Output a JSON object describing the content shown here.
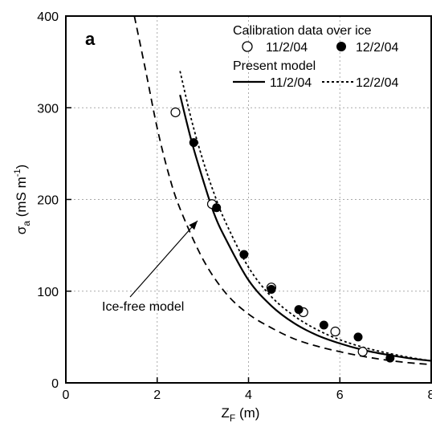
{
  "chart_data": {
    "type": "scatter",
    "panel_label": "a",
    "xlim": [
      0,
      8
    ],
    "ylim": [
      0,
      400
    ],
    "x_ticks": [
      0,
      2,
      4,
      6,
      8
    ],
    "y_ticks": [
      0,
      100,
      200,
      300,
      400
    ],
    "x_tick_labels": [
      "0",
      "2",
      "4",
      "6",
      "8"
    ],
    "y_tick_labels": [
      "0",
      "100",
      "200",
      "300",
      "400"
    ],
    "xlabel": {
      "main": "Z",
      "sub": "F",
      "rest": " (m)"
    },
    "ylabel": {
      "main": "σ",
      "sub": "a",
      "rest": " (mS m",
      "sup": "-1",
      "end": ")"
    },
    "grid": "dotted",
    "legend": {
      "position": "top-right",
      "title1": "Calibration data over ice",
      "item_open": "11/2/04",
      "item_filled": "12/2/04",
      "title2": "Present model",
      "item_solid": "11/2/04",
      "item_dotted": "12/2/04"
    },
    "annotation": {
      "text": "Ice-free model"
    },
    "points": [
      {
        "date": "11/2/04",
        "marker": "open",
        "x": [
          2.4,
          3.2,
          4.5,
          5.2,
          5.9,
          6.5
        ],
        "y": [
          295,
          195,
          104,
          77,
          56,
          34
        ]
      },
      {
        "date": "12/2/04",
        "marker": "filled",
        "x": [
          2.8,
          3.3,
          3.9,
          4.5,
          5.1,
          5.65,
          6.4,
          7.1
        ],
        "y": [
          262,
          191,
          140,
          102,
          80,
          63,
          50,
          27
        ]
      }
    ],
    "curves": [
      {
        "model": "Present model",
        "date": "11/2/04",
        "style": "solid",
        "x": [
          2.5,
          2.75,
          3.0,
          3.25,
          3.5,
          4.0,
          4.5,
          5.0,
          5.5,
          6.0,
          6.5,
          7.0,
          7.5,
          8.0
        ],
        "y": [
          314,
          264,
          222,
          184,
          157,
          112,
          84,
          65,
          52,
          43,
          36,
          31,
          27,
          24
        ]
      },
      {
        "model": "Present model",
        "date": "12/2/04",
        "style": "dotted",
        "x": [
          2.5,
          2.75,
          3.0,
          3.25,
          3.5,
          4.0,
          4.5,
          5.0,
          5.5,
          6.0,
          6.5,
          7.0,
          7.5,
          8.0
        ],
        "y": [
          340,
          287,
          243,
          206,
          175,
          126,
          94,
          73,
          58,
          47,
          39,
          33,
          28,
          24
        ]
      },
      {
        "model": "Ice-free model",
        "style": "dashed",
        "x": [
          1.5,
          1.75,
          2.0,
          2.25,
          2.5,
          3.0,
          3.5,
          4.0,
          4.5,
          5.0,
          5.5,
          6.0,
          6.5,
          7.0,
          7.5,
          8.0
        ],
        "y": [
          400,
          340,
          278,
          228,
          190,
          135,
          98,
          75,
          60,
          48,
          40,
          34,
          29,
          25,
          22,
          20
        ]
      }
    ]
  }
}
